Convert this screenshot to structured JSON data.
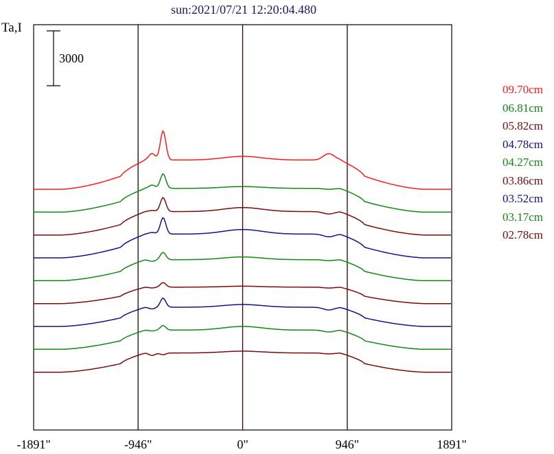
{
  "title": "sun:2021/07/21 12:20:04.480",
  "ylabel": "Ta,I",
  "scale_bar_label": "3000",
  "colors": {
    "red": "#ff1a1a",
    "green": "#118811",
    "maroon": "#7a0a0a",
    "blue": "#11118a"
  },
  "chart_data": {
    "type": "line",
    "title": "sun:2021/07/21 12:20:04.480",
    "ylabel": "Ta,I",
    "xlabel": "",
    "x_ticks": [
      "-1891\"",
      "-946\"",
      "0\"",
      "946\"",
      "1891\""
    ],
    "x_tick_values": [
      -1891,
      -946,
      0,
      946,
      1891
    ],
    "xlim": [
      -1891,
      1891
    ],
    "vertical_lines": [
      -946,
      0,
      946
    ],
    "scale_bar": 3000,
    "series": [
      {
        "name": "09.70cm",
        "color": "red",
        "baseline": 0,
        "peak1": 3200,
        "peak2": 2000,
        "mid": 1800,
        "right": 1950,
        "plateau": 1600
      },
      {
        "name": "06.81cm",
        "color": "green",
        "baseline": -1250,
        "peak1": 2100,
        "peak2": 1500,
        "mid": 1400,
        "right": 1250,
        "plateau": 1300
      },
      {
        "name": "05.82cm",
        "color": "maroon",
        "baseline": -2500,
        "peak1": 2050,
        "peak2": 1350,
        "mid": 1500,
        "right": 1150,
        "plateau": 1280
      },
      {
        "name": "04.78cm",
        "color": "blue",
        "baseline": -3750,
        "peak1": 2200,
        "peak2": 1400,
        "mid": 1550,
        "right": 1150,
        "plateau": 1300
      },
      {
        "name": "04.27cm",
        "color": "green",
        "baseline": -5000,
        "peak1": 1550,
        "peak2": 1050,
        "mid": 1300,
        "right": 1100,
        "plateau": 1150
      },
      {
        "name": "03.86cm",
        "color": "maroon",
        "baseline": -6250,
        "peak1": 1150,
        "peak2": 850,
        "mid": 950,
        "right": 850,
        "plateau": 900
      },
      {
        "name": "03.52cm",
        "color": "blue",
        "baseline": -7500,
        "peak1": 1550,
        "peak2": 950,
        "mid": 1200,
        "right": 900,
        "plateau": 1050
      },
      {
        "name": "03.17cm",
        "color": "green",
        "baseline": -8750,
        "peak1": 1300,
        "peak2": 1000,
        "mid": 1250,
        "right": 950,
        "plateau": 1050
      },
      {
        "name": "02.78cm",
        "color": "maroon",
        "baseline": -10000,
        "peak1": 950,
        "peak2": 900,
        "mid": 1150,
        "right": 1000,
        "plateau": 1050
      }
    ]
  }
}
